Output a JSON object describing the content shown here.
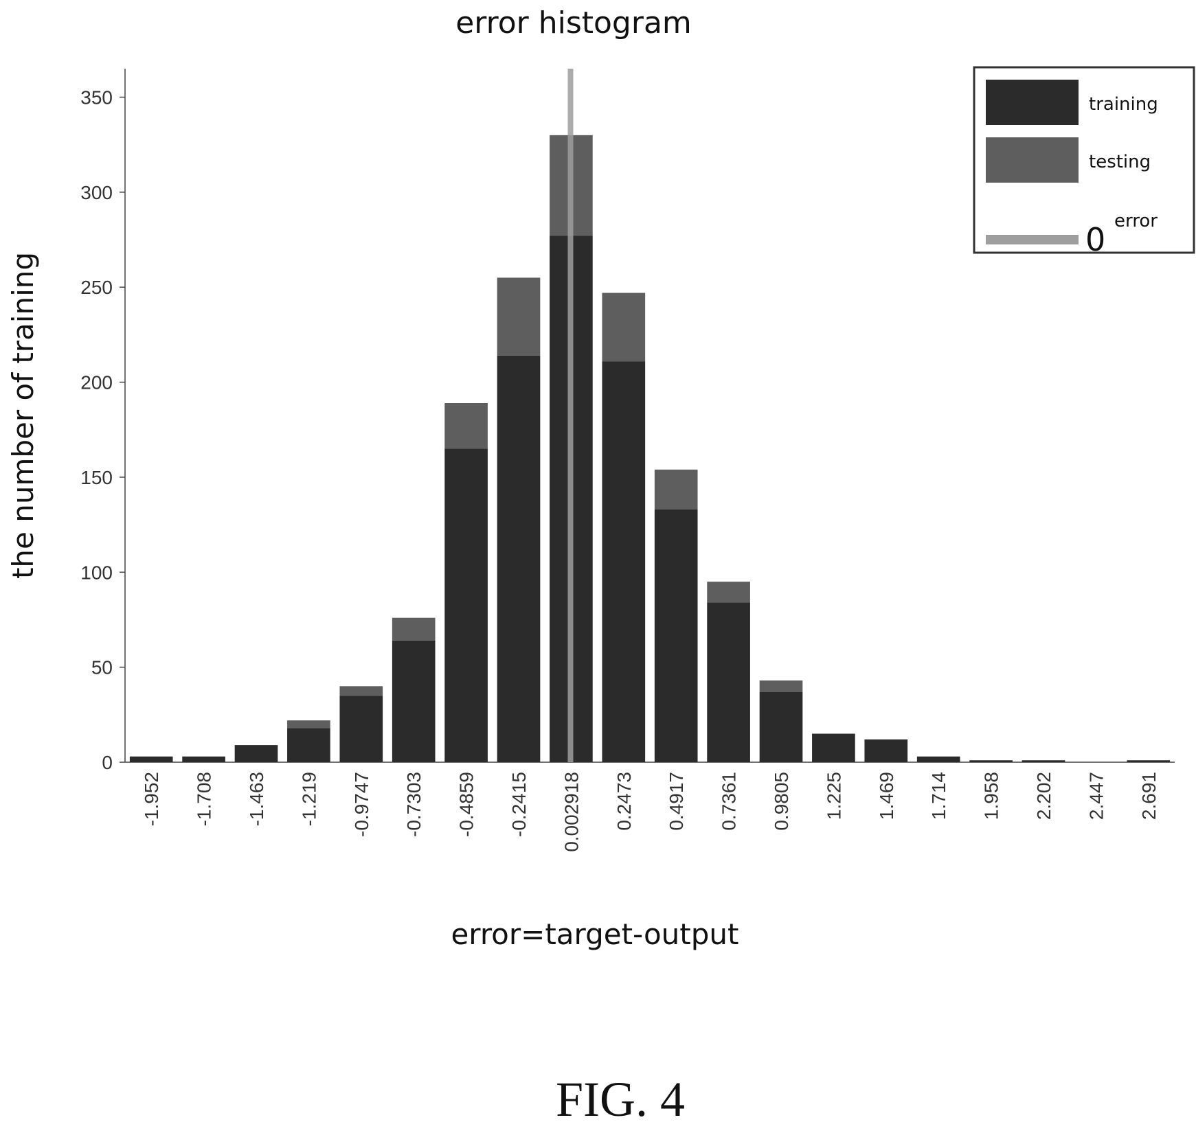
{
  "chart_data": {
    "type": "bar",
    "title": "error histogram",
    "xlabel": "error=target-output",
    "ylabel": "the number of training",
    "ylim": [
      0,
      365
    ],
    "yticks": [
      0,
      50,
      100,
      150,
      200,
      250,
      300,
      350
    ],
    "categories": [
      "-1.952",
      "-1.708",
      "-1.463",
      "-1.219",
      "-0.9747",
      "-0.7303",
      "-0.4859",
      "-0.2415",
      "0.002918",
      "0.2473",
      "0.4917",
      "0.7361",
      "0.9805",
      "1.225",
      "1.469",
      "1.714",
      "1.958",
      "2.202",
      "2.447",
      "2.691"
    ],
    "stacked": true,
    "series": [
      {
        "name": "training",
        "color": "#2b2b2b",
        "values": [
          3,
          3,
          9,
          18,
          35,
          64,
          165,
          214,
          277,
          211,
          133,
          84,
          37,
          15,
          12,
          3,
          1,
          1,
          0,
          1
        ]
      },
      {
        "name": "testing",
        "color": "#5e5e5e",
        "values": [
          0,
          0,
          0,
          4,
          5,
          12,
          24,
          41,
          53,
          36,
          21,
          11,
          6,
          0,
          0,
          0,
          0,
          0,
          0,
          0
        ]
      }
    ],
    "zero_line": {
      "x": 0,
      "legend_number": "0",
      "legend_text": "error",
      "color": "#9e9e9e"
    },
    "legend_position": "top-right",
    "grid": false
  },
  "figure_label": "FIG. 4"
}
